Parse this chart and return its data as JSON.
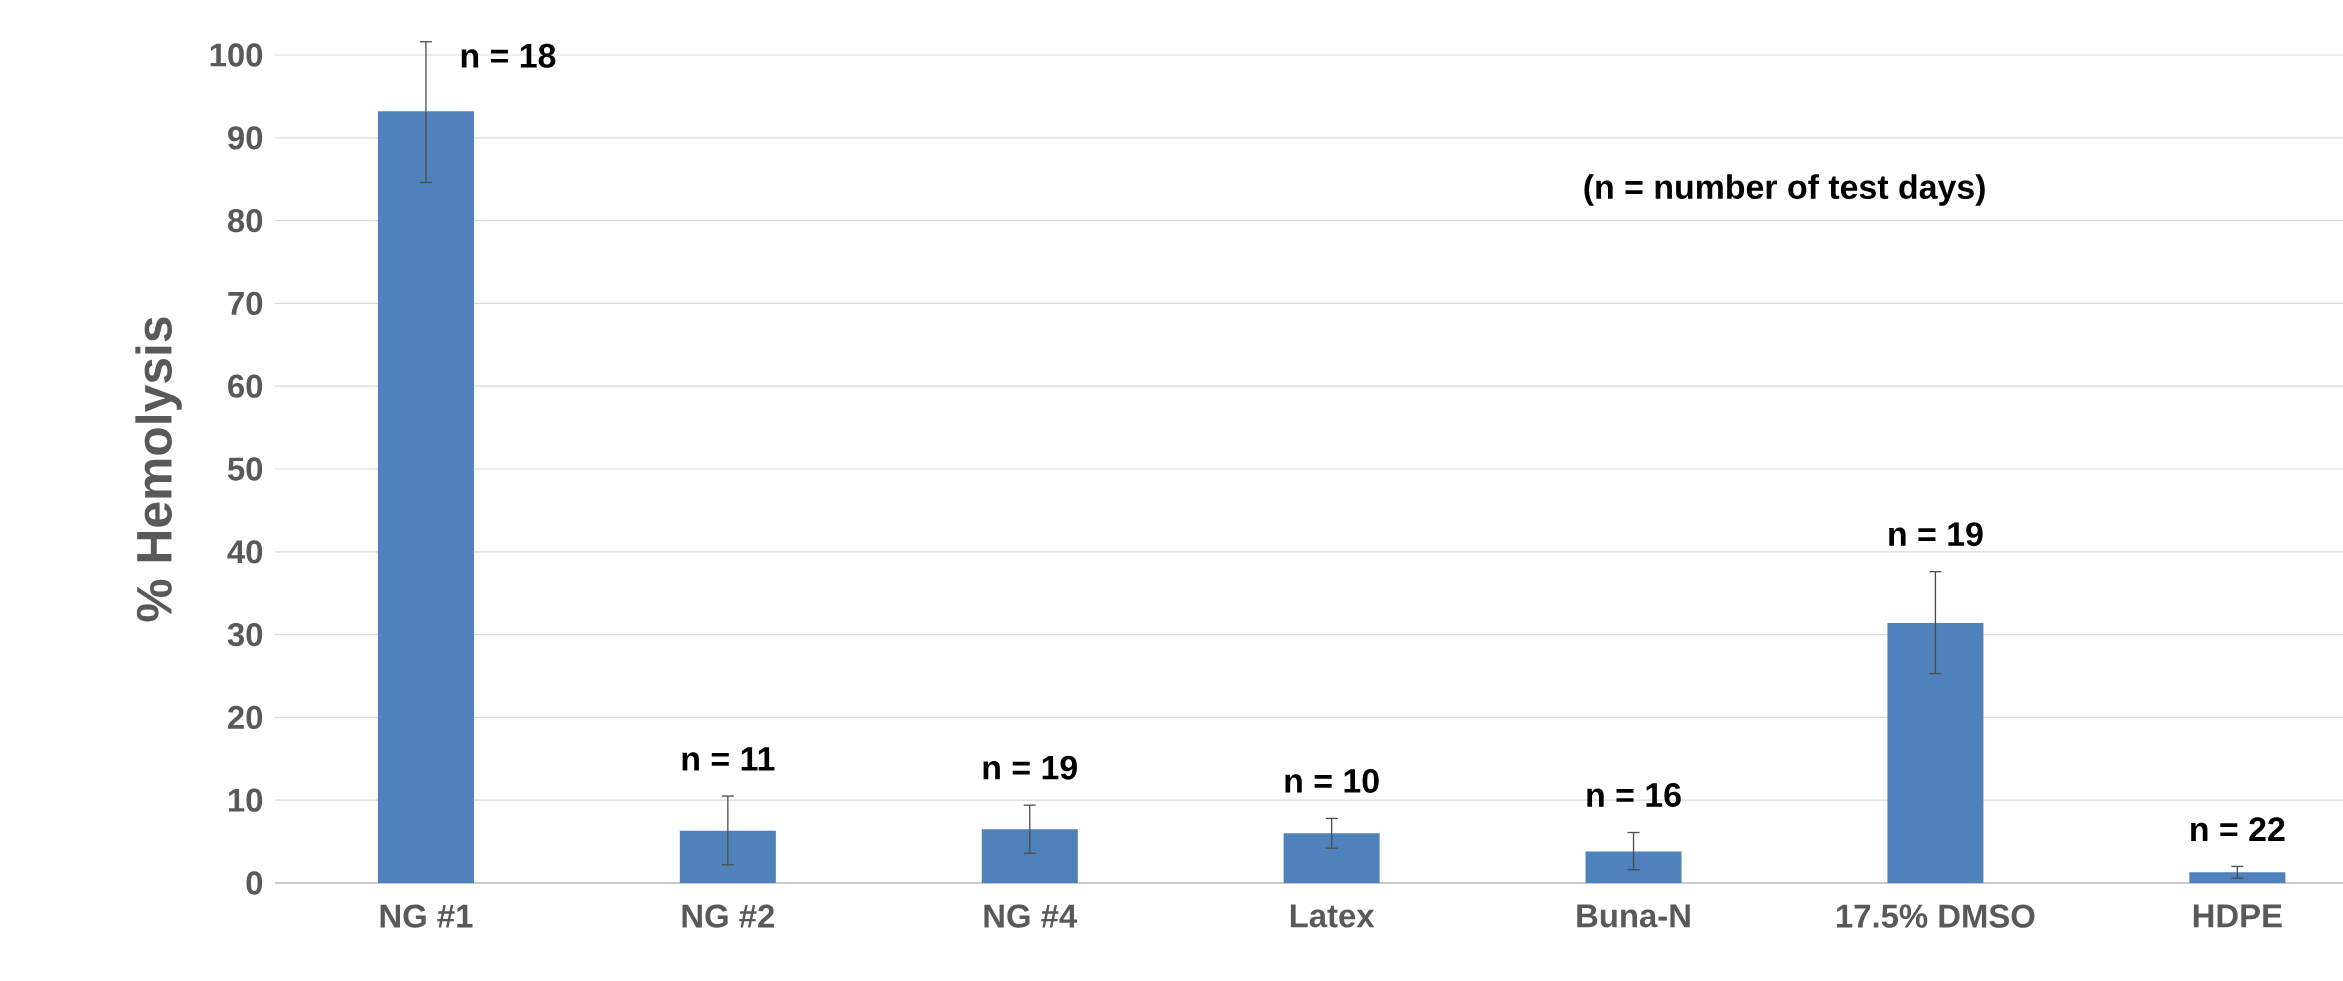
{
  "chart_data": {
    "type": "bar",
    "ylabel": "% Hemolysis",
    "categories": [
      "NG #1",
      "NG #2",
      "NG #4",
      "Latex",
      "Buna-N",
      "17.5% DMSO",
      "HDPE"
    ],
    "values": [
      93.2,
      6.3,
      6.5,
      6.0,
      3.8,
      31.4,
      1.3
    ],
    "errors": [
      [
        84.6,
        101.6
      ],
      [
        2.2,
        10.5
      ],
      [
        3.6,
        9.4
      ],
      [
        4.2,
        7.8
      ],
      [
        1.6,
        6.1
      ],
      [
        25.3,
        37.6
      ],
      [
        0.6,
        2.0
      ]
    ],
    "color": "#4f81bd",
    "ylim": [
      0,
      100
    ],
    "yticks": [
      0,
      10,
      20,
      30,
      40,
      50,
      60,
      70,
      80,
      90,
      100
    ],
    "grid": "y",
    "annotations": [
      {
        "text": "n = 18",
        "x": "NG #1",
        "y": 101.6
      },
      {
        "text": "n = 11",
        "x": "NG #2",
        "y": 10.5
      },
      {
        "text": "n = 19",
        "x": "NG #4",
        "y": 9.4
      },
      {
        "text": "n = 10",
        "x": "Latex",
        "y": 7.8
      },
      {
        "text": "n = 16",
        "x": "Buna-N",
        "y": 6.1
      },
      {
        "text": "n = 19",
        "x": "17.5% DMSO",
        "y": 37.6
      },
      {
        "text": "n = 22",
        "x": "HDPE",
        "y": 2.0
      },
      "(n = number of test days)"
    ]
  }
}
